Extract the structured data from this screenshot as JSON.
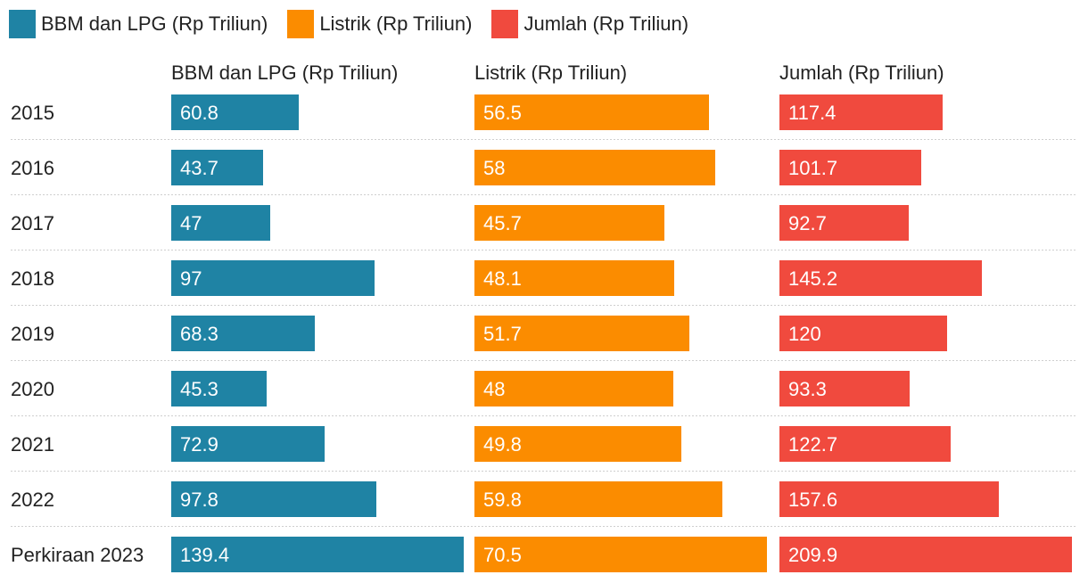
{
  "chart_data": {
    "type": "bar",
    "orientation": "horizontal",
    "layout": "small-multiples",
    "categories": [
      "2015",
      "2016",
      "2017",
      "2018",
      "2019",
      "2020",
      "2021",
      "2022",
      "Perkiraan 2023"
    ],
    "series": [
      {
        "name": "BBM dan LPG (Rp Triliun)",
        "color": "#1f83a4",
        "values": [
          60.8,
          43.7,
          47,
          97,
          68.3,
          45.3,
          72.9,
          97.8,
          139.4
        ]
      },
      {
        "name": "Listrik (Rp Triliun)",
        "color": "#fb8c00",
        "values": [
          56.5,
          58,
          45.7,
          48.1,
          51.7,
          48,
          49.8,
          59.8,
          70.5
        ]
      },
      {
        "name": "Jumlah (Rp Triliun)",
        "color": "#f04a3e",
        "values": [
          117.4,
          101.7,
          92.7,
          145.2,
          120,
          93.3,
          122.7,
          157.6,
          209.9
        ]
      }
    ],
    "legend_position": "top-left",
    "grid": false
  }
}
